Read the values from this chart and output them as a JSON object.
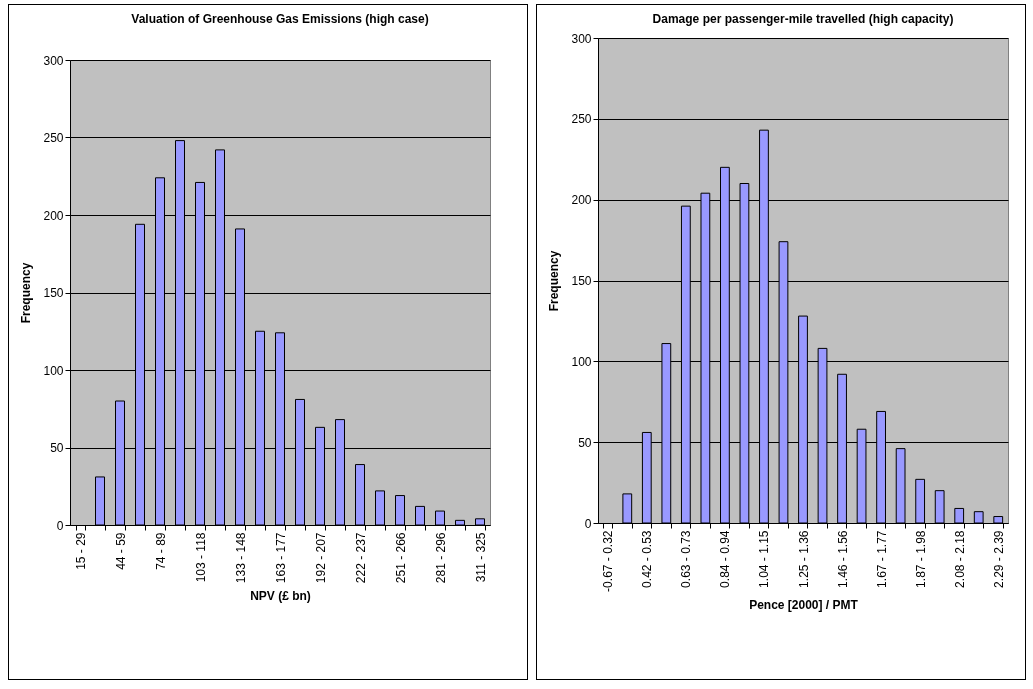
{
  "chart_data": [
    {
      "type": "bar",
      "title": "Valuation of Greenhouse Gas Emissions (high case)",
      "xlabel": "NPV (£ bn)",
      "ylabel": "Frequency",
      "categories": [
        "15 - 29",
        null,
        "44 - 59",
        null,
        "74 - 89",
        null,
        "103 - 118",
        null,
        "133 - 148",
        null,
        "163 - 177",
        null,
        "192 - 207",
        null,
        "222 - 237",
        null,
        "251 - 266",
        null,
        "281 - 296",
        null,
        "311 - 325"
      ],
      "values": [
        0,
        31,
        80,
        194,
        224,
        248,
        221,
        242,
        191,
        125,
        124,
        81,
        63,
        68,
        39,
        22,
        19,
        12,
        9,
        3,
        4
      ],
      "color": "#9999ff",
      "ylim": [
        0,
        300
      ],
      "yticks": [
        0,
        50,
        100,
        150,
        200,
        250,
        300
      ],
      "grid": "y"
    },
    {
      "type": "bar",
      "title": "Damage per passenger-mile travelled (high capacity)",
      "xlabel": "Pence [2000] / PMT",
      "ylabel": "Frequency",
      "categories": [
        "-0.67 - 0.32",
        null,
        "0.42 - 0.53",
        null,
        "0.63 - 0.73",
        null,
        "0.84 - 0.94",
        null,
        "1.04 - 1.15",
        null,
        "1.25 - 1.36",
        null,
        "1.46 - 1.56",
        null,
        "1.67 - 1.77",
        null,
        "1.87 - 1.98",
        null,
        "2.08 - 2.18",
        null,
        "2.29 - 2.39"
      ],
      "values": [
        0,
        18,
        56,
        111,
        196,
        204,
        220,
        210,
        243,
        174,
        128,
        108,
        92,
        58,
        69,
        46,
        27,
        20,
        9,
        7,
        4
      ],
      "color": "#9999ff",
      "ylim": [
        0,
        300
      ],
      "yticks": [
        0,
        50,
        100,
        150,
        200,
        250,
        300
      ],
      "grid": "y"
    }
  ]
}
